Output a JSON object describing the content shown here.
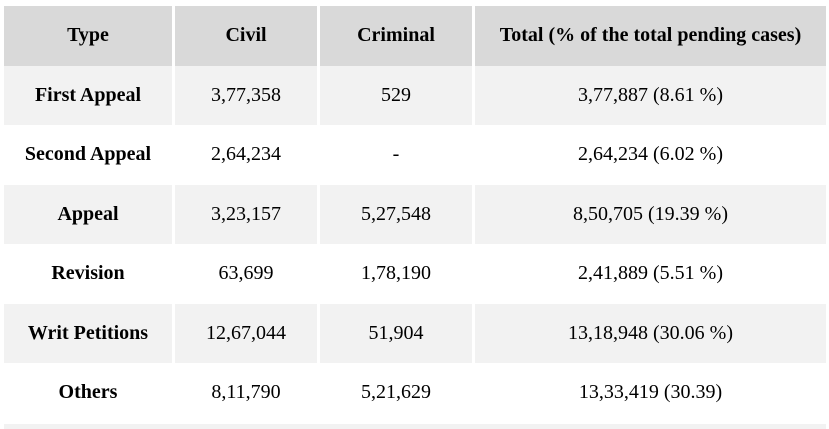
{
  "table": {
    "headers": [
      "Type",
      "Civil",
      "Criminal",
      "Total (% of the total pending cases)"
    ],
    "rows": [
      [
        "First Appeal",
        "3,77,358",
        "529",
        "3,77,887 (8.61 %)"
      ],
      [
        "Second Appeal",
        "2,64,234",
        "-",
        "2,64,234 (6.02 %)"
      ],
      [
        "Appeal",
        "3,23,157",
        "5,27,548",
        "8,50,705 (19.39 %)"
      ],
      [
        "Revision",
        "63,699",
        "1,78,190",
        "2,41,889 (5.51 %)"
      ],
      [
        "Writ Petitions",
        "12,67,044",
        "51,904",
        "13,18,948 (30.06 %)"
      ],
      [
        "Others",
        "8,11,790",
        "5,21,629",
        "13,33,419 (30.39)"
      ]
    ]
  },
  "colors": {
    "header_bg": "#d9d9d9",
    "shaded_row_bg": "#f2f2f2",
    "plain_row_bg": "#ffffff"
  }
}
